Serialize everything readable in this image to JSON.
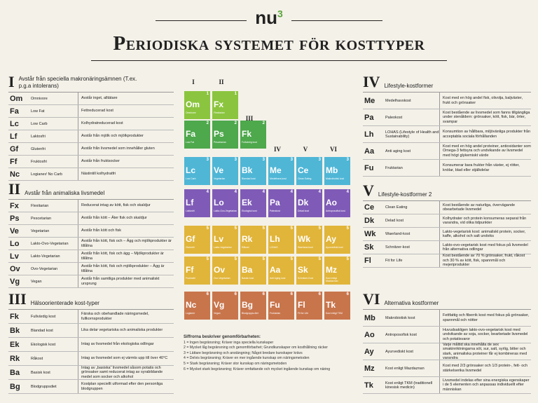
{
  "logo": {
    "text": "nu",
    "sup": "3"
  },
  "title": "Periodiska systemet för kosttyper",
  "groups": [
    "I",
    "II",
    "III",
    "IV",
    "V",
    "VI"
  ],
  "colors": {
    "1": "#8bc53f",
    "2": "#4ea84c",
    "3": "#4fb6d6",
    "4": "#7f5bb7",
    "5": "#e1b53a",
    "6": "#c8754c"
  },
  "tiles": [
    {
      "sym": "Om",
      "label": "Omnivore",
      "num": "1",
      "col": 0,
      "row": 0
    },
    {
      "sym": "Fx",
      "label": "Flexitarian",
      "num": "1",
      "col": 1,
      "row": 0
    },
    {
      "sym": "Fa",
      "label": "Low Fat",
      "num": "2",
      "col": 0,
      "row": 1
    },
    {
      "sym": "Ps",
      "label": "Pescetarian",
      "num": "2",
      "col": 1,
      "row": 1
    },
    {
      "sym": "Fk",
      "label": "Fullvärdig kost",
      "num": "2",
      "col": 2,
      "row": 1
    },
    {
      "sym": "Lc",
      "label": "Low Carb",
      "num": "3",
      "col": 0,
      "row": 2
    },
    {
      "sym": "Ve",
      "label": "Vegetarian",
      "num": "3",
      "col": 1,
      "row": 2
    },
    {
      "sym": "Bk",
      "label": "Blandad kost",
      "num": "3",
      "col": 2,
      "row": 2
    },
    {
      "sym": "Me",
      "label": "Medelhavs-kost",
      "num": "3",
      "col": 3,
      "row": 2
    },
    {
      "sym": "Ce",
      "label": "Clean Eating",
      "num": "3",
      "col": 4,
      "row": 2
    },
    {
      "sym": "Mb",
      "label": "Makrobiotisk kost",
      "num": "3",
      "col": 5,
      "row": 2
    },
    {
      "sym": "Lf",
      "label": "Laktosfri",
      "num": "4",
      "col": 0,
      "row": 3
    },
    {
      "sym": "Lo",
      "label": "Lakto-Ovo-Vegetarian",
      "num": "4",
      "col": 1,
      "row": 3
    },
    {
      "sym": "Ek",
      "label": "Ekologisk kost",
      "num": "4",
      "col": 2,
      "row": 3
    },
    {
      "sym": "Pa",
      "label": "Paleokost",
      "num": "4",
      "col": 3,
      "row": 3
    },
    {
      "sym": "Dk",
      "label": "Delad kost",
      "num": "4",
      "col": 4,
      "row": 3
    },
    {
      "sym": "Ao",
      "label": "Antroposofisk kost",
      "num": "4",
      "col": 5,
      "row": 3
    },
    {
      "sym": "Gf",
      "label": "Glutenfri",
      "num": "5",
      "col": 0,
      "row": 4
    },
    {
      "sym": "Lv",
      "label": "Lakto-Vegetarian",
      "num": "5",
      "col": 1,
      "row": 4
    },
    {
      "sym": "Rk",
      "label": "Råkost",
      "num": "5",
      "col": 2,
      "row": 4
    },
    {
      "sym": "Lh",
      "label": "LOHAS",
      "num": "5",
      "col": 3,
      "row": 4
    },
    {
      "sym": "Wk",
      "label": "Waerland-kost",
      "num": "5",
      "col": 4,
      "row": 4
    },
    {
      "sym": "Ay",
      "label": "Ayurvediskt kost",
      "num": "5",
      "col": 5,
      "row": 4
    },
    {
      "sym": "Ff",
      "label": "Fruktosfri",
      "num": "5",
      "col": 0,
      "row": 5
    },
    {
      "sym": "Ov",
      "label": "Ovo-Vegetarian",
      "num": "5",
      "col": 1,
      "row": 5
    },
    {
      "sym": "Ba",
      "label": "Basisk kost",
      "num": "5",
      "col": 2,
      "row": 5
    },
    {
      "sym": "Aa",
      "label": "Anti Aging kost",
      "num": "5",
      "col": 3,
      "row": 5
    },
    {
      "sym": "Sk",
      "label": "Schnitzer-Kost",
      "num": "5",
      "col": 4,
      "row": 5
    },
    {
      "sym": "Mz",
      "label": "Kost enligt Mazdaznan",
      "num": "5",
      "col": 5,
      "row": 5
    },
    {
      "sym": "Nc",
      "label": "Logianer",
      "num": "6",
      "col": 0,
      "row": 6
    },
    {
      "sym": "Vg",
      "label": "Vegan",
      "num": "6",
      "col": 1,
      "row": 6
    },
    {
      "sym": "Bg",
      "label": "Blodgrupps-diet",
      "num": "6",
      "col": 2,
      "row": 6
    },
    {
      "sym": "Fu",
      "label": "Fruktarian",
      "num": "6",
      "col": 3,
      "row": 6
    },
    {
      "sym": "Fl",
      "label": "Fit for Life",
      "num": "6",
      "col": 4,
      "row": 6
    },
    {
      "sym": "Tk",
      "label": "Kost enligt TKM",
      "num": "6",
      "col": 5,
      "row": 6
    }
  ],
  "legend": {
    "title": "Siffrorna beskriver genomförbarheten:",
    "items": [
      "1 = Ingen begränsning; Kräver inga speciella kunskaper",
      "2 = Mycket låg begränsning och genomförbarhet; Grundkunskaper om kosthållning räcker",
      "3 = Lättare begränsning och anstängning; Något bredare kunskaper krävs",
      "4 = Delvis begränsning; Kräver en mer ingående kunskap om näringsmetoden",
      "5 = Stark begränsning; Kräver stor kunskap om näringsmetoden",
      "6 = Mycket stark begränsning; Kräver omfattande och mycket ingående kunskap om näring"
    ]
  },
  "sections_left": [
    {
      "num": "I",
      "title": "Avstår från speciella makronäringsämnen (T.ex. p.g.a intolerans)",
      "rows": [
        {
          "sym": "Om",
          "name": "Omnivore",
          "desc": "Avstår inget, alltätare"
        },
        {
          "sym": "Fa",
          "name": "Low Fat",
          "desc": "Fettreducerad kost"
        },
        {
          "sym": "Lc",
          "name": "Low Carb",
          "desc": "Kolhydratreducerad kost"
        },
        {
          "sym": "Lf",
          "name": "Laktosfri",
          "desc": "Avstår från mjölk och mjölkprodukter"
        },
        {
          "sym": "Gf",
          "name": "Glutenfri",
          "desc": "Avstår från livsmedel som innehåller gluten"
        },
        {
          "sym": "Ff",
          "name": "Fruktosfri",
          "desc": "Avstår från fruktsocker"
        },
        {
          "sym": "Nc",
          "name": "Logianer/ No Carb",
          "desc": "Nästintill kolhydratfri"
        }
      ]
    },
    {
      "num": "II",
      "title": "Avstår från animaliska livsmedel",
      "rows": [
        {
          "sym": "Fx",
          "name": "Flexitarian",
          "desc": "Reducerat intag av kött, fisk och skaldjur"
        },
        {
          "sym": "Ps",
          "name": "Pescetarian",
          "desc": "Avstår från kött – Äter fisk och skaldjur"
        },
        {
          "sym": "Ve",
          "name": "Vegetarian",
          "desc": "Avstår från kött och fisk"
        },
        {
          "sym": "Lo",
          "name": "Lakto-Ovo-Vegetarian",
          "desc": "Avstår från kött, fisk och – Ägg och mjölkprodukter är tillåtna"
        },
        {
          "sym": "Lv",
          "name": "Lakto-Vegetarian",
          "desc": "Avstår från kött, fisk och ägg – Mjölkprodukter är tillåtna"
        },
        {
          "sym": "Ov",
          "name": "Ovo-Vegetarian",
          "desc": "Avstår från kött, fisk och mjölkprodukter – Ägg är tillåtna"
        },
        {
          "sym": "Vg",
          "name": "Vegan",
          "desc": "Avstår från samtliga produkter med animaliskt ursprung"
        }
      ]
    },
    {
      "num": "III",
      "title": "Hälsoorienterade kost-typer",
      "rows": [
        {
          "sym": "Fk",
          "name": "Fullvärdig kost",
          "desc": "Färska och obehandlade näringsmedel, fullkornsprodukter"
        },
        {
          "sym": "Bk",
          "name": "Blandad kost",
          "desc": "Lika delar vegetariska och animaliska produkter"
        },
        {
          "sym": "Ek",
          "name": "Ekologisk kost",
          "desc": "Intag av livsmedel från ekologiska odlingar"
        },
        {
          "sym": "Rk",
          "name": "Råkost",
          "desc": "Intag av livsmedel som ej värmts upp till över 40°C"
        },
        {
          "sym": "Ba",
          "name": "Basisk kost",
          "desc": "Intag av „basiska“ livsmedel såsom potatis och grönsaker samt reducerat intag av syrabildande medel som socker och alkohol"
        },
        {
          "sym": "Bg",
          "name": "Blodgruppsdiet",
          "desc": "Kostplan speciellt utformad efter den personliga blodgruppen"
        }
      ]
    }
  ],
  "sections_right": [
    {
      "num": "IV",
      "title": "Lifestyle-kostformer",
      "rows": [
        {
          "sym": "Me",
          "name": "Medelhavskost",
          "desc": "Kost med en hög andel fisk, olivolja, baljväxter, frukt och grönsaker"
        },
        {
          "sym": "Pa",
          "name": "Paleokost",
          "desc": "Kost bestående av livsmedel som fanns tillgängliga under stenåldern: grönsaker, kött, fisk, bär, örter, svampar"
        },
        {
          "sym": "Lh",
          "name": "LOHAS (Lifestyle of Health and Sustainability)",
          "desc": "Konsumtion av hållbara, miljövänliga produkter från acceptabla sociala förhållanden"
        },
        {
          "sym": "Aa",
          "name": "Anti aging kost",
          "desc": "Kost med en hög andel proteiner, antioxidanter som Omega-3 fettsyra och undvikande av livsmedel med högt glykemiskt värde"
        },
        {
          "sym": "Fu",
          "name": "Fruktarian",
          "desc": "Konsumerar bara frukter från växter, ej rötter, knölar, blad eller stjälkdelar"
        }
      ]
    },
    {
      "num": "V",
      "title": "Lifestyle-kostformer 2",
      "rows": [
        {
          "sym": "Ce",
          "name": "Clean Eating",
          "desc": "Kost bestående av naturliga, övervägande obearbetade livsmedel"
        },
        {
          "sym": "Dk",
          "name": "Delad kost",
          "desc": "Kolhydrater och protein konsumeras separat från varandra, vid olika tidpunkter"
        },
        {
          "sym": "Wk",
          "name": "Waerland-kost",
          "desc": "Lakto-vegetarisk kost: animaliskt protein, socker, kaffe, alkohol och salt undviks"
        },
        {
          "sym": "Sk",
          "name": "Schnitzer-kost",
          "desc": "Lakto-ovo-vegetarisk kost med fokus på livsmedel från alternativa odlingar"
        },
        {
          "sym": "Fl",
          "name": "Fit for Life",
          "desc": "Kost bestående av 70 % grönsaker, frukt, råkost och 30 % av kött, fisk, spannmål och mejeriprodukter"
        }
      ]
    },
    {
      "num": "VI",
      "title": "Alternativa kostformer",
      "rows": [
        {
          "sym": "Mb",
          "name": "Makrobiotisk kost",
          "desc": "Fettfattig och fiberrik kost med fokus på grönsaker, spannmål och nötter"
        },
        {
          "sym": "Ao",
          "name": "Antroposofisk kost",
          "desc": "Huvudsakligen lakto-ovo-vegetarisk kost med undvikande av soja, socker, bearbetade livsmedel och potatisvaror"
        },
        {
          "sym": "Ay",
          "name": "Ayurvediskt kost",
          "desc": "Varje måltid ska innehålla de sex smakinriktningarna söt, sur, salt, syrlig, bitter och stark, animaliska proteiner får ej kombineras med varandra"
        },
        {
          "sym": "Mz",
          "name": "Kost enligt Mazdaznan",
          "desc": "Kost med 2/3 grönsaker och 1/3 protein-, fett- och stärkelserika livsmedel"
        },
        {
          "sym": "Tk",
          "name": "Kost enligt TKM (traditionell kinesisk medicin)",
          "desc": "Livsmedel indelas efter sina energiska egenskaper i de 5 elementen och anpassas individuellt efter människan"
        }
      ]
    }
  ]
}
